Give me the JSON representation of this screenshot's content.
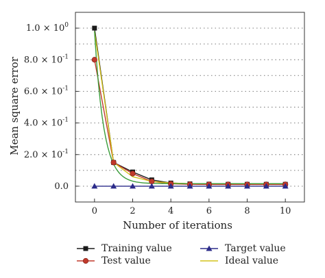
{
  "chart_data": {
    "type": "line",
    "xlabel": "Number of iterations",
    "ylabel": "Mean square error",
    "xlim": [
      -1,
      11
    ],
    "ylim": [
      -0.1,
      1.1
    ],
    "x_ticks": [
      0,
      2,
      4,
      6,
      8,
      10
    ],
    "y_ticks": [
      {
        "value": 0.0,
        "label": "0.0"
      },
      {
        "value": 0.2,
        "label": "2.0 × 10"
      },
      {
        "value": 0.4,
        "label": "4.0 × 10"
      },
      {
        "value": 0.6,
        "label": "6.0 × 10"
      },
      {
        "value": 0.8,
        "label": "8.0 × 10"
      },
      {
        "value": 1.0,
        "label": "1.0 × 10"
      }
    ],
    "y_tick_exponents": [
      "",
      "-1",
      "-1",
      "-1",
      "-1",
      "0"
    ],
    "grid": "dotted horizontal",
    "legend_position": "bottom",
    "x": [
      0,
      1,
      2,
      3,
      4,
      5,
      6,
      7,
      8,
      9,
      10
    ],
    "series": [
      {
        "name": "Training value",
        "color": "#1a1a1a",
        "marker": "square",
        "values": [
          1.0,
          0.15,
          0.09,
          0.04,
          0.02,
          0.015,
          0.013,
          0.012,
          0.012,
          0.012,
          0.012
        ]
      },
      {
        "name": "Test value",
        "color": "#c0392b",
        "marker": "circle",
        "values": [
          0.8,
          0.15,
          0.08,
          0.03,
          0.015,
          0.012,
          0.011,
          0.011,
          0.011,
          0.011,
          0.011
        ]
      },
      {
        "name": "Target value",
        "color": "#2c2c8a",
        "marker": "triangle",
        "values": [
          0,
          0,
          0,
          0,
          0,
          0,
          0,
          0,
          0,
          0,
          0
        ]
      },
      {
        "name": "Ideal value",
        "color": "#d4c21a",
        "marker": "none",
        "values": [
          0.98,
          0.15,
          0.06,
          0.03,
          0.02,
          0.016,
          0.016,
          0.016,
          0.016,
          0.016,
          0.016
        ]
      }
    ],
    "ideal_curve_color": "#3a9d3a"
  }
}
